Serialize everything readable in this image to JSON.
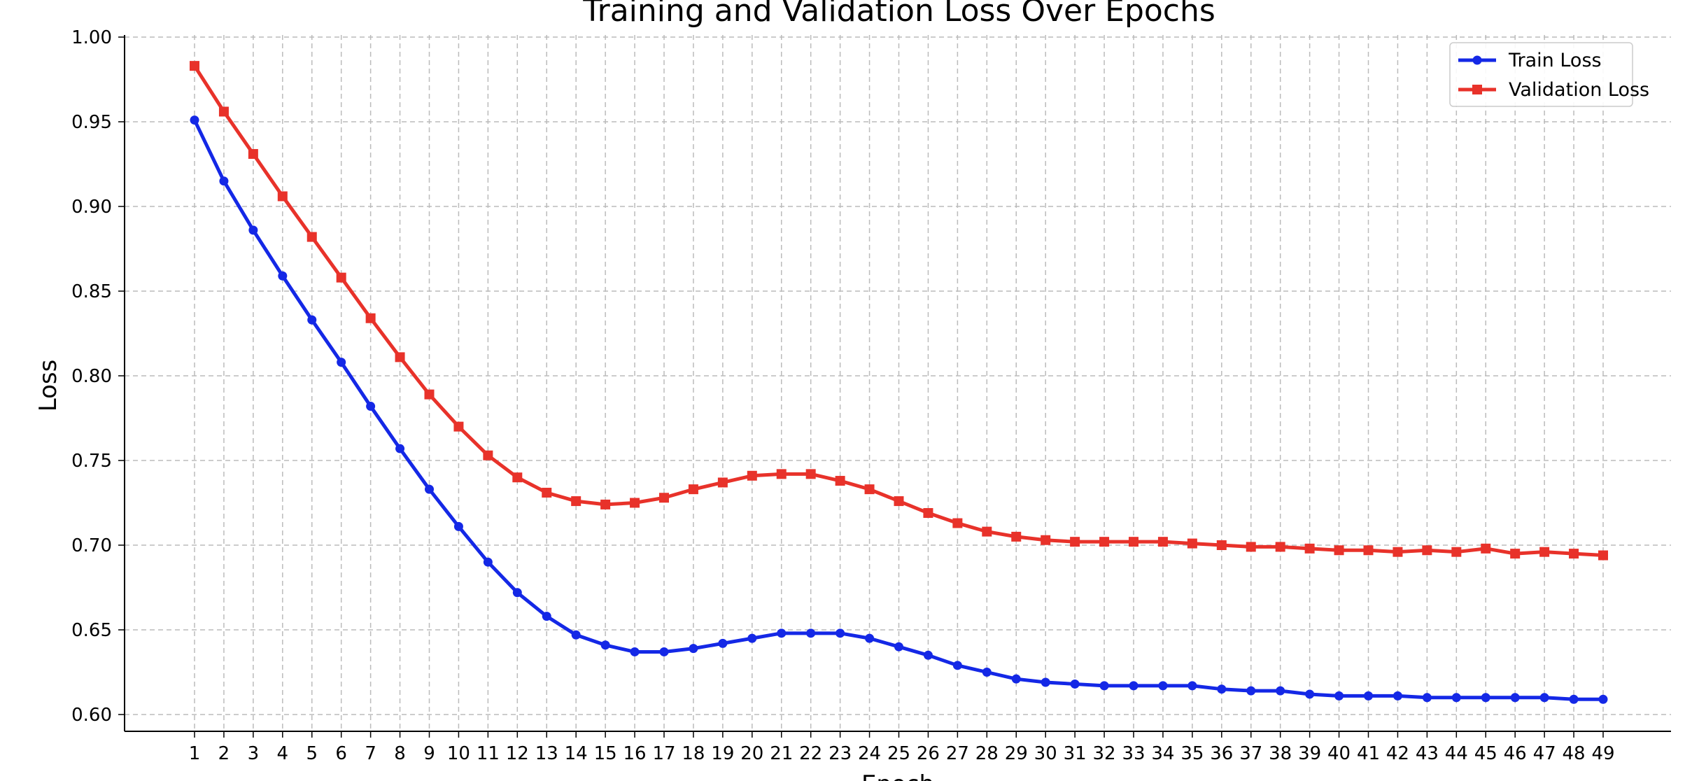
{
  "chart_data": {
    "type": "line",
    "title": "Training and Validation Loss Over Epochs",
    "xlabel": "Epoch",
    "ylabel": "Loss",
    "x": [
      1,
      2,
      3,
      4,
      5,
      6,
      7,
      8,
      9,
      10,
      11,
      12,
      13,
      14,
      15,
      16,
      17,
      18,
      19,
      20,
      21,
      22,
      23,
      24,
      25,
      26,
      27,
      28,
      29,
      30,
      31,
      32,
      33,
      34,
      35,
      36,
      37,
      38,
      39,
      40,
      41,
      42,
      43,
      44,
      45,
      46,
      47,
      48,
      49
    ],
    "ylim": [
      0.59,
      1.0
    ],
    "yticks": [
      "0.60",
      "0.65",
      "0.70",
      "0.75",
      "0.80",
      "0.85",
      "0.90",
      "0.95",
      "1.00"
    ],
    "grid": true,
    "legend_position": "top-right",
    "series": [
      {
        "name": "Train Loss",
        "color": "#1428e6",
        "marker": "circle",
        "values": [
          0.951,
          0.915,
          0.886,
          0.859,
          0.833,
          0.808,
          0.782,
          0.757,
          0.733,
          0.711,
          0.69,
          0.672,
          0.658,
          0.647,
          0.641,
          0.637,
          0.637,
          0.639,
          0.642,
          0.645,
          0.648,
          0.648,
          0.648,
          0.645,
          0.64,
          0.635,
          0.629,
          0.625,
          0.621,
          0.619,
          0.618,
          0.617,
          0.617,
          0.617,
          0.617,
          0.615,
          0.614,
          0.614,
          0.612,
          0.611,
          0.611,
          0.611,
          0.61,
          0.61,
          0.61,
          0.61,
          0.61,
          0.609,
          0.609
        ]
      },
      {
        "name": "Validation Loss",
        "color": "#e8322a",
        "marker": "square",
        "values": [
          0.983,
          0.956,
          0.931,
          0.906,
          0.882,
          0.858,
          0.834,
          0.811,
          0.789,
          0.77,
          0.753,
          0.74,
          0.731,
          0.726,
          0.724,
          0.725,
          0.728,
          0.733,
          0.737,
          0.741,
          0.742,
          0.742,
          0.738,
          0.733,
          0.726,
          0.719,
          0.713,
          0.708,
          0.705,
          0.703,
          0.702,
          0.702,
          0.702,
          0.702,
          0.701,
          0.7,
          0.699,
          0.699,
          0.698,
          0.697,
          0.697,
          0.696,
          0.697,
          0.696,
          0.698,
          0.695,
          0.696,
          0.695,
          0.694
        ]
      }
    ]
  }
}
